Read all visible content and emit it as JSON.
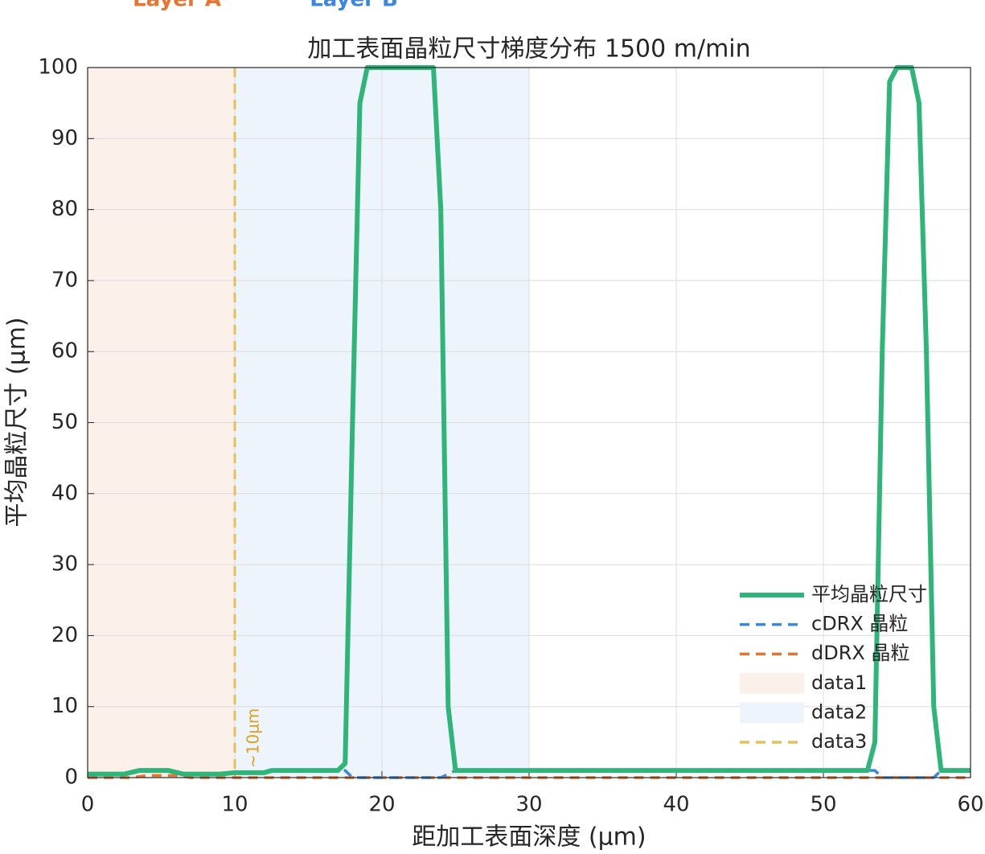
{
  "chart_data": {
    "type": "line",
    "title": "加工表面晶粒尺寸梯度分布   1500 m/min",
    "xlabel": "距加工表面深度 (μm)",
    "ylabel": "平均晶粒尺寸 (μm)",
    "top_labels": [
      "Layer A",
      "Layer B"
    ],
    "annotation": "~10μm",
    "xlim": [
      0,
      60
    ],
    "xticks": [
      0,
      10,
      20,
      30,
      40,
      50,
      60
    ],
    "ylim": [
      0,
      100
    ],
    "yticks": [
      0,
      10,
      20,
      30,
      40,
      50,
      60,
      70,
      80,
      90,
      100
    ],
    "grid": true,
    "legend_loc": "southeast",
    "regions": [
      {
        "name": "data1",
        "color": "#fbf1ea",
        "x": [
          0,
          10
        ]
      },
      {
        "name": "data2",
        "color": "#edf4fc",
        "x": [
          10,
          30
        ]
      }
    ],
    "vlines": [
      {
        "name": "data3",
        "color": "#e6be5c",
        "x": 10
      }
    ],
    "series": [
      {
        "name": "平均晶粒尺寸",
        "color": "#2fb57a",
        "dashed": false,
        "x": [
          0,
          2.5,
          3.5,
          5.5,
          6.5,
          9,
          10,
          12,
          12.5,
          17,
          17.5,
          18,
          18.5,
          19,
          23.5,
          24,
          24.5,
          25,
          53,
          53.5,
          54,
          54.5,
          55,
          56,
          56.5,
          57,
          57.5,
          58,
          60
        ],
        "values": [
          0.5,
          0.5,
          1,
          1,
          0.5,
          0.5,
          0.7,
          0.7,
          1,
          1,
          2,
          50,
          95,
          100,
          100,
          80,
          10,
          1,
          1,
          5,
          60,
          98,
          100,
          100,
          95,
          60,
          10,
          1,
          1
        ]
      },
      {
        "name": "cDRX 晶粒",
        "color": "#3a86e0",
        "dashed": true,
        "x": [
          0,
          2.5,
          3.5,
          5.5,
          6.5,
          9,
          10,
          12,
          12.5,
          17.5,
          18,
          24,
          25,
          53.5,
          54,
          57.5,
          58,
          60
        ],
        "values": [
          0.5,
          0.5,
          1,
          1,
          0.5,
          0.5,
          0.7,
          0.7,
          1,
          1,
          0,
          0,
          1,
          1,
          0,
          0,
          1,
          1
        ]
      },
      {
        "name": "dDRX 晶粒",
        "color": "#e8742f",
        "dashed": true,
        "x": [
          0,
          3,
          4,
          6,
          7,
          60
        ],
        "values": [
          0,
          0,
          0.3,
          0.3,
          0,
          0
        ]
      }
    ]
  }
}
